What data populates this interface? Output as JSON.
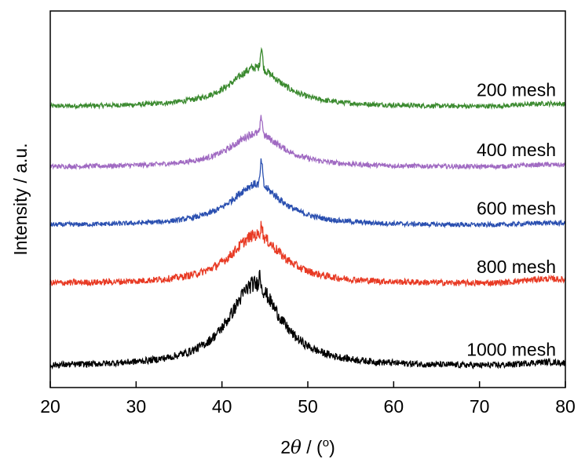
{
  "chart_data": {
    "type": "line",
    "xlabel_prefix": "2",
    "xlabel_symbol": "θ",
    "xlabel_suffix": " / (",
    "xlabel_unit": "o",
    "xlabel_close": ")",
    "ylabel": "Intensity / a.u.",
    "xlim": [
      20,
      80
    ],
    "xticks": [
      "20",
      "30",
      "40",
      "50",
      "60",
      "70",
      "80"
    ],
    "y_ticks_shown": false,
    "grid": false,
    "series": [
      {
        "name": "200 mesh",
        "color": "#3b8a2f",
        "baseline": 0.745,
        "peak_center": 44.0,
        "peak_height": 0.105,
        "peak_width": 3.6,
        "tail": 0.008,
        "noise": 0.012,
        "sharp_at": 44.6,
        "sharp_height": 0.055
      },
      {
        "name": "400 mesh",
        "color": "#a06ac2",
        "baseline": 0.585,
        "peak_center": 44.0,
        "peak_height": 0.09,
        "peak_width": 3.6,
        "tail": 0.006,
        "noise": 0.012,
        "sharp_at": 44.6,
        "sharp_height": 0.045
      },
      {
        "name": "600 mesh",
        "color": "#2a4fb0",
        "baseline": 0.43,
        "peak_center": 44.0,
        "peak_height": 0.11,
        "peak_width": 3.6,
        "tail": 0.006,
        "noise": 0.012,
        "sharp_at": 44.6,
        "sharp_height": 0.065
      },
      {
        "name": "800 mesh",
        "color": "#e83a24",
        "baseline": 0.275,
        "peak_center": 44.0,
        "peak_height": 0.13,
        "peak_width": 3.6,
        "tail": 0.012,
        "noise": 0.016,
        "sharp_at": 44.6,
        "sharp_height": 0.03
      },
      {
        "name": "1000 mesh",
        "color": "#000000",
        "baseline": 0.055,
        "peak_center": 43.8,
        "peak_height": 0.22,
        "peak_width": 3.6,
        "tail": 0.01,
        "noise": 0.016,
        "sharp_at": 44.4,
        "sharp_height": 0.03
      }
    ]
  }
}
